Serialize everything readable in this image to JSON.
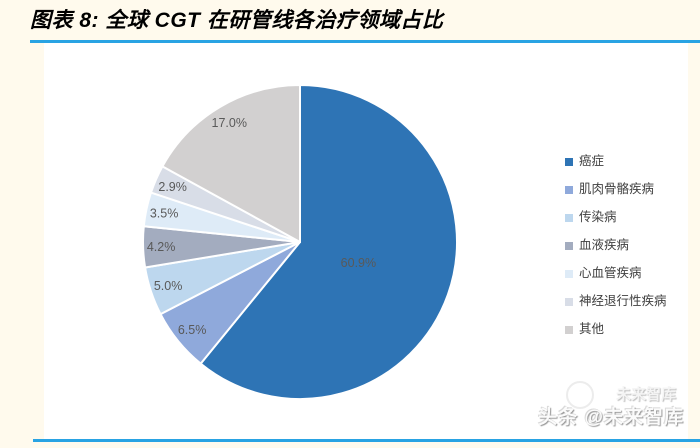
{
  "page": {
    "background": "#FFFAED",
    "panel_background": "#FFFFFF",
    "accent_line_color": "#29A3E3"
  },
  "header": {
    "title": "图表 8: 全球 CGT 在研管线各治疗领域占比"
  },
  "watermark": {
    "text": "头条 @未来智库",
    "ghost": "未来智库"
  },
  "chart_data": {
    "type": "pie",
    "title": "全球 CGT 在研管线各治疗领域占比",
    "categories": [
      "癌症",
      "肌肉骨骼疾病",
      "传染病",
      "血液疾病",
      "心血管疾病",
      "神经退行性疾病",
      "其他"
    ],
    "values": [
      60.9,
      6.5,
      5.0,
      4.2,
      3.5,
      2.9,
      17.0
    ],
    "labels": [
      "60.9%",
      "6.5%",
      "5.0%",
      "4.2%",
      "3.5%",
      "2.9%",
      "17.0%"
    ],
    "colors": [
      "#2E74B5",
      "#8FA9DB",
      "#BDD7EE",
      "#A3ACBF",
      "#DEEBF7",
      "#D8DDE7",
      "#D2D0D0"
    ],
    "slice_border_color": "#FFFFFF",
    "label_color": "#595959",
    "legend_text_color": "#3F3F3F",
    "legend_position": "right",
    "start_angle_deg": 0,
    "direction": "clockwise"
  }
}
